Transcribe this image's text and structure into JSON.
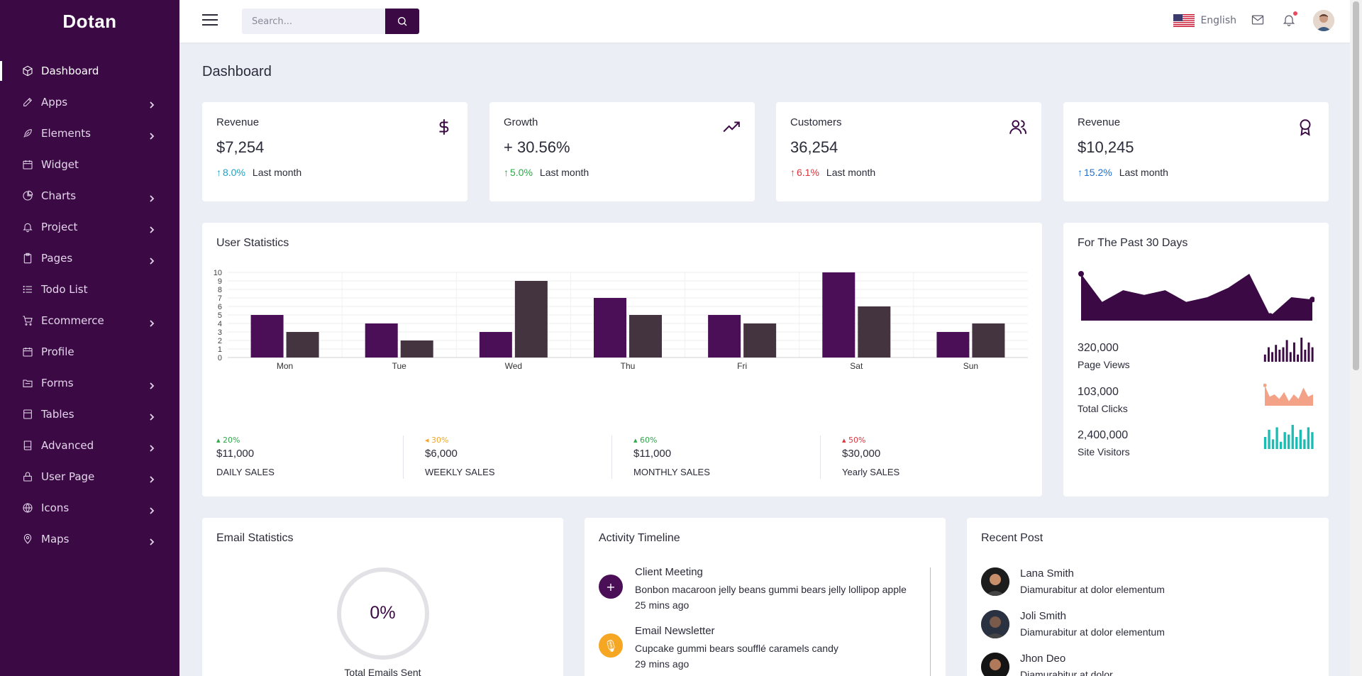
{
  "app": {
    "brand": "Dotan"
  },
  "sidebar": {
    "items": [
      {
        "label": "Dashboard",
        "icon": "box-icon",
        "has_children": false,
        "active": true
      },
      {
        "label": "Apps",
        "icon": "edit-icon",
        "has_children": true
      },
      {
        "label": "Elements",
        "icon": "feather-icon",
        "has_children": true
      },
      {
        "label": "Widget",
        "icon": "calendar-icon",
        "has_children": false
      },
      {
        "label": "Charts",
        "icon": "pie-chart-icon",
        "has_children": true
      },
      {
        "label": "Project",
        "icon": "bell-icon",
        "has_children": true
      },
      {
        "label": "Pages",
        "icon": "clipboard-icon",
        "has_children": true
      },
      {
        "label": "Todo List",
        "icon": "list-icon",
        "has_children": false
      },
      {
        "label": "Ecommerce",
        "icon": "cart-icon",
        "has_children": true
      },
      {
        "label": "Profile",
        "icon": "calendar-icon",
        "has_children": false
      },
      {
        "label": "Forms",
        "icon": "folder-icon",
        "has_children": true
      },
      {
        "label": "Tables",
        "icon": "file-icon",
        "has_children": true
      },
      {
        "label": "Advanced",
        "icon": "book-icon",
        "has_children": true
      },
      {
        "label": "User Page",
        "icon": "lock-icon",
        "has_children": true
      },
      {
        "label": "Icons",
        "icon": "globe-icon",
        "has_children": true
      },
      {
        "label": "Maps",
        "icon": "map-pin-icon",
        "has_children": true
      }
    ]
  },
  "header": {
    "search_placeholder": "Search...",
    "language": "English",
    "icons": [
      "menu-icon",
      "search-icon",
      "flag-us-icon",
      "mail-icon",
      "bell-icon",
      "avatar"
    ]
  },
  "page": {
    "title": "Dashboard"
  },
  "stats": [
    {
      "title": "Revenue",
      "value": "$7,254",
      "change": "8.0%",
      "direction": "up",
      "color": "#1ba3c6",
      "period": "Last month",
      "icon": "dollar-icon"
    },
    {
      "title": "Growth",
      "value": "+ 30.56%",
      "change": "5.0%",
      "direction": "up",
      "color": "#2ea84a",
      "period": "Last month",
      "icon": "trending-up-icon"
    },
    {
      "title": "Customers",
      "value": "36,254",
      "change": "6.1%",
      "direction": "up",
      "color": "#d9363e",
      "period": "Last month",
      "icon": "users-icon"
    },
    {
      "title": "Revenue",
      "value": "$10,245",
      "change": "15.2%",
      "direction": "up",
      "color": "#1b6fd6",
      "period": "Last month",
      "icon": "award-icon"
    }
  ],
  "user_statistics": {
    "title": "User Statistics",
    "sales": [
      {
        "change": "20%",
        "color": "#2ea84a",
        "value": "$11,000",
        "label": "DAILY SALES"
      },
      {
        "change": "30%",
        "color": "#f5a623",
        "value": "$6,000",
        "label": "WEEKLY SALES"
      },
      {
        "change": "60%",
        "color": "#2ea84a",
        "value": "$11,000",
        "label": "MONTHLY SALES"
      },
      {
        "change": "50%",
        "color": "#d9363e",
        "value": "$30,000",
        "label": "Yearly SALES"
      }
    ]
  },
  "chart_data": [
    {
      "type": "bar",
      "categories": [
        "Mon",
        "Tue",
        "Wed",
        "Thu",
        "Fri",
        "Sat",
        "Sun"
      ],
      "series": [
        {
          "values": [
            5,
            4,
            3,
            7,
            5,
            10,
            3
          ],
          "color": "#4a0f57"
        },
        {
          "values": [
            3,
            2,
            9,
            5,
            4,
            6,
            4
          ],
          "color": "#44343f"
        }
      ],
      "ylim": [
        0,
        10
      ],
      "yticks": [
        0,
        1,
        2,
        3,
        4,
        5,
        6,
        7,
        8,
        9,
        10
      ],
      "grid": true
    },
    {
      "type": "area",
      "values": [
        10,
        4,
        6.5,
        5.5,
        6.5,
        4,
        5,
        7,
        10,
        1,
        5,
        4.5
      ],
      "color": "#3b0a45"
    }
  ],
  "past_30_days": {
    "title": "For The Past 30 Days",
    "metrics": [
      {
        "value": "320,000",
        "label": "Page Views",
        "color": "#3b0a45",
        "chart": "bar",
        "values": [
          3,
          6,
          4,
          7,
          5,
          6,
          9,
          4,
          8,
          3,
          10,
          5,
          8,
          6
        ]
      },
      {
        "value": "103,000",
        "label": "Total Clicks",
        "color": "#f4a287",
        "chart": "area",
        "values": [
          9,
          4,
          5,
          3,
          6,
          2,
          5,
          3,
          8,
          4,
          5
        ]
      },
      {
        "value": "2,400,000",
        "label": "Site Visitors",
        "color": "#1abcb4",
        "chart": "bar",
        "values": [
          5,
          8,
          4,
          9,
          3,
          7,
          6,
          10,
          5,
          8,
          4,
          9,
          7
        ]
      }
    ]
  },
  "email_statistics": {
    "title": "Email Statistics",
    "percent": "0%",
    "caption": "Total Emails Sent"
  },
  "activity_timeline": {
    "title": "Activity Timeline",
    "items": [
      {
        "title": "Client Meeting",
        "desc": "Bonbon macaroon jelly beans gummi bears jelly lollipop apple",
        "time": "25 mins ago",
        "color": "#4a0f57",
        "symbol": "+",
        "icon": "plus-icon"
      },
      {
        "title": "Email Newsletter",
        "desc": "Cupcake gummi bears soufflé caramels candy",
        "time": "29 mins ago",
        "color": "#f5a623",
        "symbol": "🎙",
        "icon": "mic-icon"
      }
    ]
  },
  "recent_post": {
    "title": "Recent Post",
    "items": [
      {
        "name": "Lana Smith",
        "text": "Diamurabitur at dolor elementum"
      },
      {
        "name": "Joli Smith",
        "text": "Diamurabitur at dolor elementum"
      },
      {
        "name": "Jhon Deo",
        "text": "Diamurabitur at dolor"
      }
    ]
  }
}
